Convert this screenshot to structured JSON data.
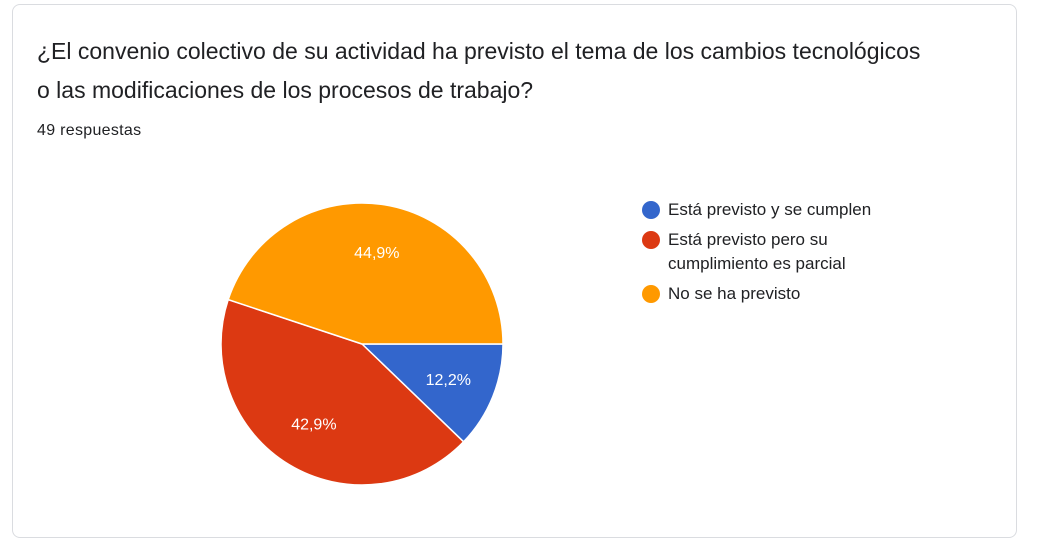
{
  "card": {
    "title": "¿El convenio colectivo de su actividad ha previsto el tema de los cambios tecnológicos o las modificaciones de los procesos de trabajo?",
    "subtitle": "49 respuestas"
  },
  "chart_data": {
    "type": "pie",
    "total_responses": 49,
    "slices": [
      {
        "label": "Está previsto y se cumplen",
        "value": 12.2,
        "display": "12,2%",
        "color": "#3366cc"
      },
      {
        "label": "Está previsto pero su cumplimiento es parcial",
        "value": 42.9,
        "display": "42,9%",
        "color": "#dc3912"
      },
      {
        "label": "No se ha previsto",
        "value": 44.9,
        "display": "44,9%",
        "color": "#ff9900"
      }
    ],
    "legend_position": "right"
  }
}
